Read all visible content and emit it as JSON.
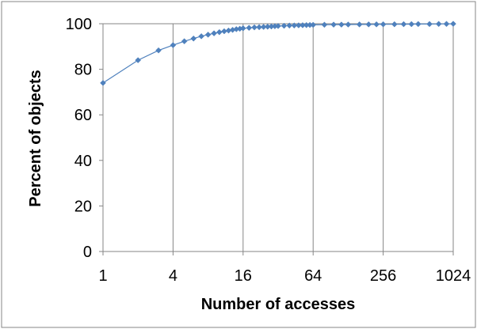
{
  "chart_data": {
    "type": "line",
    "title": "",
    "xlabel": "Number of accesses",
    "ylabel": "Percent of objects",
    "x_scale": "log2",
    "xlim": [
      1,
      1024
    ],
    "ylim": [
      0,
      100
    ],
    "x_ticks": [
      1,
      4,
      16,
      64,
      256,
      1024
    ],
    "x_tick_labels": [
      "1",
      "4",
      "16",
      "64",
      "256",
      "1024"
    ],
    "y_ticks": [
      0,
      20,
      40,
      60,
      80,
      100
    ],
    "y_tick_labels": [
      "0",
      "20",
      "40",
      "60",
      "80",
      "100"
    ],
    "grid": "vertical",
    "legend": "none",
    "colors": {
      "series": "#4F81BD",
      "grid": "#868686",
      "frame": "#868686"
    },
    "series": [
      {
        "marker": "diamond",
        "x": [
          1,
          2,
          3,
          4,
          5,
          6,
          7,
          8,
          9,
          10,
          11,
          12,
          13,
          14,
          15,
          16,
          18,
          20,
          22,
          24,
          26,
          28,
          30,
          32,
          36,
          40,
          44,
          48,
          52,
          56,
          60,
          64,
          80,
          96,
          112,
          128,
          160,
          192,
          224,
          256,
          320,
          384,
          448,
          512,
          640,
          768,
          896,
          1024
        ],
        "y": [
          74,
          84,
          88.3,
          90.6,
          92.3,
          93.5,
          94.5,
          95.2,
          95.8,
          96.3,
          96.7,
          97.0,
          97.3,
          97.6,
          97.8,
          98.0,
          98.2,
          98.4,
          98.5,
          98.6,
          98.7,
          98.8,
          98.9,
          99.0,
          99.1,
          99.2,
          99.25,
          99.3,
          99.35,
          99.4,
          99.45,
          99.5,
          99.55,
          99.6,
          99.62,
          99.65,
          99.68,
          99.7,
          99.72,
          99.75,
          99.77,
          99.8,
          99.82,
          99.85,
          99.87,
          99.9,
          99.92,
          99.95
        ]
      }
    ]
  }
}
